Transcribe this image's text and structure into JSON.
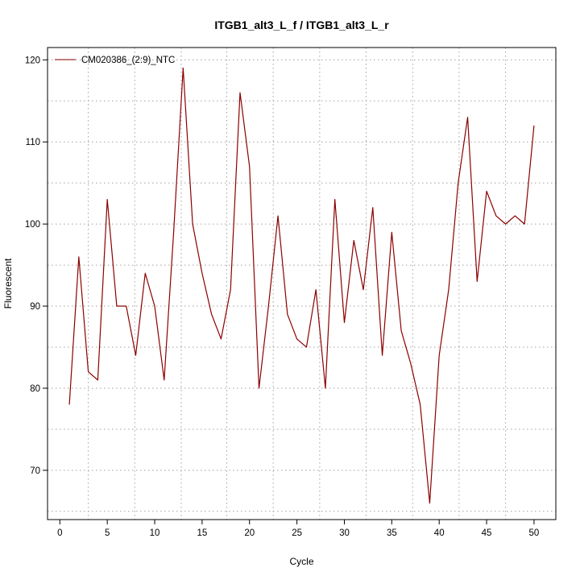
{
  "chart_data": {
    "type": "line",
    "title": "ITGB1_alt3_L_f / ITGB1_alt3_L_r",
    "xlabel": "Cycle",
    "ylabel": "Fluorescent",
    "xlim": [
      -1.3,
      52.3
    ],
    "ylim": [
      64,
      121.5
    ],
    "x_ticks": [
      0,
      5,
      10,
      15,
      20,
      25,
      30,
      35,
      40,
      45,
      50
    ],
    "y_ticks": [
      70,
      80,
      90,
      100,
      110,
      120
    ],
    "x_grid": [
      3,
      7.9,
      12.8,
      17.6,
      22.5,
      27.4,
      32.3,
      37.2,
      42.1,
      47
    ],
    "y_grid": [
      65,
      70,
      75,
      80,
      85,
      90,
      95,
      100,
      105,
      110,
      115,
      120
    ],
    "grid": true,
    "legend_position": "top-left",
    "series": [
      {
        "name": "CM020386_(2:9)_NTC",
        "color": "#8b0000",
        "x": [
          1,
          2,
          3,
          4,
          5,
          6,
          7,
          8,
          9,
          10,
          11,
          12,
          13,
          14,
          15,
          16,
          17,
          18,
          19,
          20,
          21,
          22,
          23,
          24,
          25,
          26,
          27,
          28,
          29,
          30,
          31,
          32,
          33,
          34,
          35,
          36,
          37,
          38,
          39,
          40,
          41,
          42,
          43,
          44,
          45,
          46,
          47,
          48,
          49,
          50
        ],
        "values": [
          78,
          96,
          82,
          81,
          103,
          90,
          90,
          84,
          94,
          90,
          81,
          99,
          119,
          100,
          94,
          89,
          86,
          92,
          116,
          107,
          80,
          90,
          101,
          89,
          86,
          85,
          92,
          80,
          103,
          88,
          98,
          92,
          102,
          84,
          99,
          87,
          83,
          78,
          66,
          84,
          92,
          105,
          113,
          93,
          104,
          101,
          100,
          101,
          100,
          112
        ]
      }
    ]
  }
}
